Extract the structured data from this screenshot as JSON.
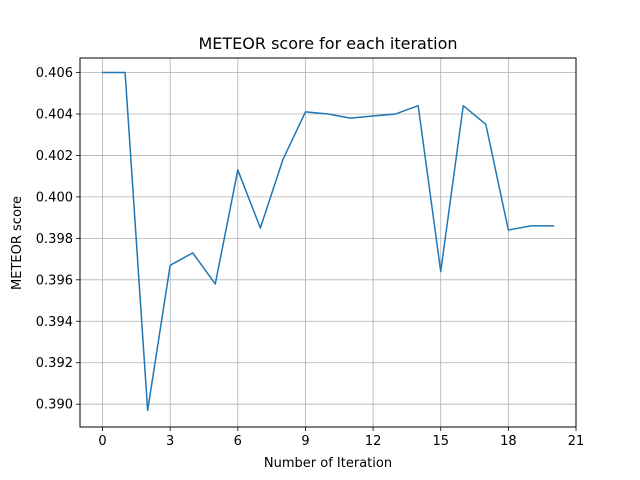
{
  "chart_data": {
    "type": "line",
    "title": "METEOR score for each iteration",
    "xlabel": "Number of Iteration",
    "ylabel": "METEOR score",
    "xlim": [
      -1,
      21
    ],
    "ylim": [
      0.3889,
      0.4067
    ],
    "xticks": [
      0,
      3,
      6,
      9,
      12,
      15,
      18,
      21
    ],
    "xtick_labels": [
      "0",
      "3",
      "6",
      "9",
      "12",
      "15",
      "18",
      "21"
    ],
    "yticks": [
      0.39,
      0.392,
      0.394,
      0.396,
      0.398,
      0.4,
      0.402,
      0.404,
      0.406
    ],
    "ytick_labels": [
      "0.390",
      "0.392",
      "0.394",
      "0.396",
      "0.398",
      "0.400",
      "0.402",
      "0.404",
      "0.406"
    ],
    "grid": true,
    "series": [
      {
        "color": "#1f77b4",
        "x": [
          0,
          1,
          2,
          3,
          4,
          5,
          6,
          7,
          8,
          9,
          10,
          11,
          12,
          13,
          14,
          15,
          16,
          17,
          18,
          19,
          20
        ],
        "values": [
          0.406,
          0.406,
          0.3897,
          0.3967,
          0.3973,
          0.3958,
          0.4013,
          0.3985,
          0.4018,
          0.4041,
          0.404,
          0.4038,
          0.4039,
          0.404,
          0.4044,
          0.3964,
          0.4044,
          0.4035,
          0.3984,
          0.3986,
          0.3986
        ]
      }
    ]
  }
}
